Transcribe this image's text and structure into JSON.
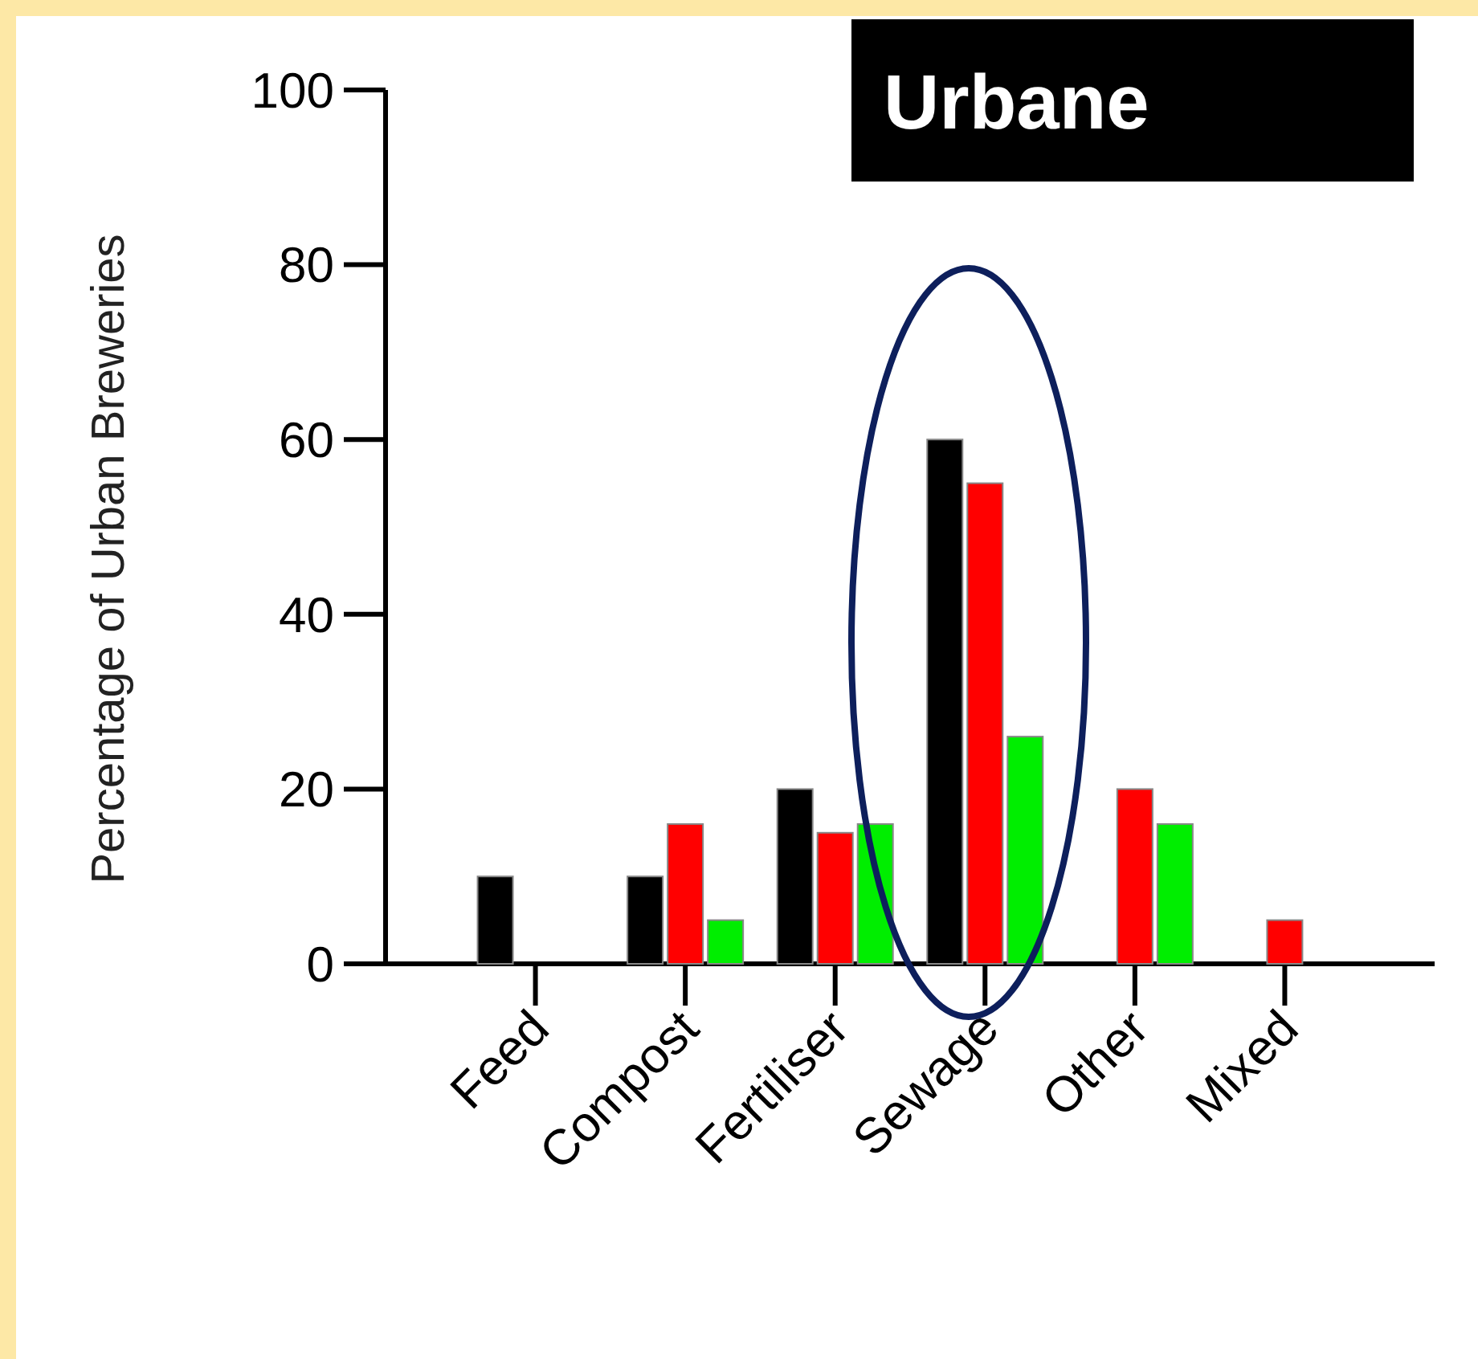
{
  "chart_data": {
    "type": "bar",
    "title": "Urbane",
    "ylabel": "Percentage of Urban Breweries",
    "categories": [
      "Feed",
      "Compost",
      "Fertiliser",
      "Sewage",
      "Other",
      "Mixed"
    ],
    "series": [
      {
        "color": "#000000",
        "values": [
          10,
          10,
          20,
          60,
          null,
          null
        ]
      },
      {
        "color": "#ff0000",
        "values": [
          null,
          16,
          15,
          55,
          20,
          5
        ]
      },
      {
        "color": "#00ee00",
        "values": [
          null,
          5,
          16,
          26,
          16,
          null
        ]
      }
    ],
    "ylim": [
      0,
      100
    ],
    "yticks": [
      0,
      20,
      40,
      60,
      80,
      100
    ],
    "grid": false
  }
}
